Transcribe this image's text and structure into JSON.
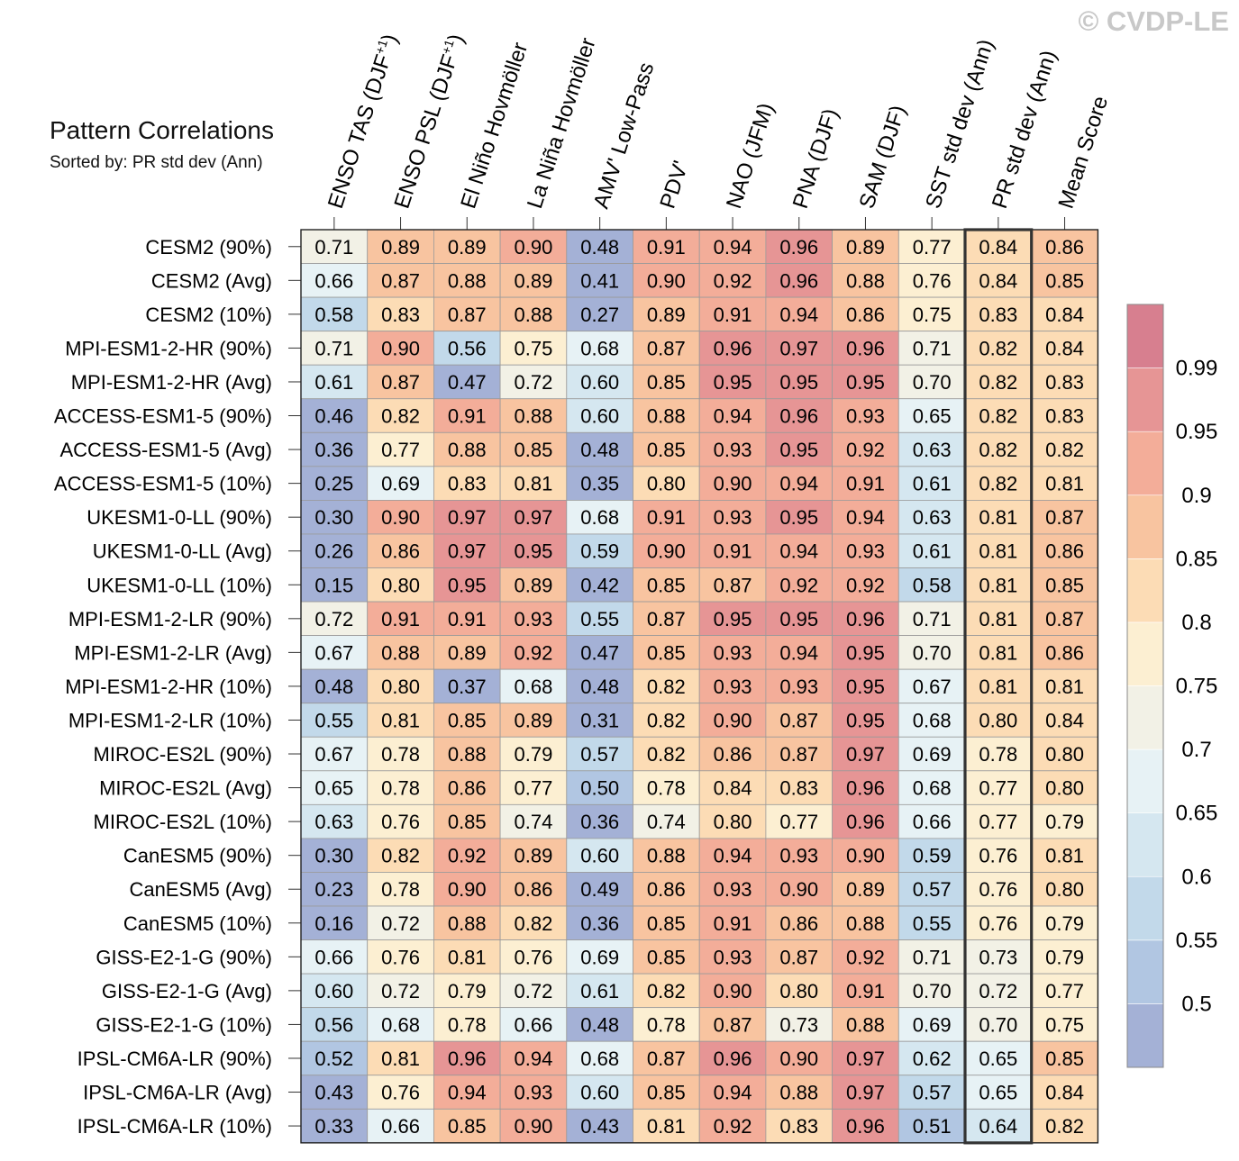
{
  "watermark": "© CVDP-LE",
  "title": "Pattern Correlations",
  "subtitle": "Sorted by: PR std dev (Ann)",
  "chart_data": {
    "type": "heatmap",
    "title": "Pattern Correlations",
    "subtitle": "Sorted by: PR std dev (Ann)",
    "columns": [
      "ENSO TAS (DJF+1)",
      "ENSO PSL (DJF+1)",
      "El Niño Hovmöller",
      "La Niña Hovmöller",
      "AMV' Low-Pass",
      "PDV'",
      "NAO (JFM)",
      "PNA (DJF)",
      "SAM (DJF)",
      "SST std dev (Ann)",
      "PR std dev (Ann)",
      "Mean Score"
    ],
    "highlighted_column": "PR std dev (Ann)",
    "rows": [
      "CESM2 (90%)",
      "CESM2 (Avg)",
      "CESM2 (10%)",
      "MPI-ESM1-2-HR (90%)",
      "MPI-ESM1-2-HR (Avg)",
      "ACCESS-ESM1-5 (90%)",
      "ACCESS-ESM1-5 (Avg)",
      "ACCESS-ESM1-5 (10%)",
      "UKESM1-0-LL (90%)",
      "UKESM1-0-LL (Avg)",
      "UKESM1-0-LL (10%)",
      "MPI-ESM1-2-LR (90%)",
      "MPI-ESM1-2-LR (Avg)",
      "MPI-ESM1-2-HR (10%)",
      "MPI-ESM1-2-LR (10%)",
      "MIROC-ES2L (90%)",
      "MIROC-ES2L (Avg)",
      "MIROC-ES2L (10%)",
      "CanESM5 (90%)",
      "CanESM5 (Avg)",
      "CanESM5 (10%)",
      "GISS-E2-1-G (90%)",
      "GISS-E2-1-G (Avg)",
      "GISS-E2-1-G (10%)",
      "IPSL-CM6A-LR (90%)",
      "IPSL-CM6A-LR (Avg)",
      "IPSL-CM6A-LR (10%)"
    ],
    "values": [
      [
        0.71,
        0.89,
        0.89,
        0.9,
        0.48,
        0.91,
        0.94,
        0.96,
        0.89,
        0.77,
        0.84,
        0.86
      ],
      [
        0.66,
        0.87,
        0.88,
        0.89,
        0.41,
        0.9,
        0.92,
        0.96,
        0.88,
        0.76,
        0.84,
        0.85
      ],
      [
        0.58,
        0.83,
        0.87,
        0.88,
        0.27,
        0.89,
        0.91,
        0.94,
        0.86,
        0.75,
        0.83,
        0.84
      ],
      [
        0.71,
        0.9,
        0.56,
        0.75,
        0.68,
        0.87,
        0.96,
        0.97,
        0.96,
        0.71,
        0.82,
        0.84
      ],
      [
        0.61,
        0.87,
        0.47,
        0.72,
        0.6,
        0.85,
        0.95,
        0.95,
        0.95,
        0.7,
        0.82,
        0.83
      ],
      [
        0.46,
        0.82,
        0.91,
        0.88,
        0.6,
        0.88,
        0.94,
        0.96,
        0.93,
        0.65,
        0.82,
        0.83
      ],
      [
        0.36,
        0.77,
        0.88,
        0.85,
        0.48,
        0.85,
        0.93,
        0.95,
        0.92,
        0.63,
        0.82,
        0.82
      ],
      [
        0.25,
        0.69,
        0.83,
        0.81,
        0.35,
        0.8,
        0.9,
        0.94,
        0.91,
        0.61,
        0.82,
        0.81
      ],
      [
        0.3,
        0.9,
        0.97,
        0.97,
        0.68,
        0.91,
        0.93,
        0.95,
        0.94,
        0.63,
        0.81,
        0.87
      ],
      [
        0.26,
        0.86,
        0.97,
        0.95,
        0.59,
        0.9,
        0.91,
        0.94,
        0.93,
        0.61,
        0.81,
        0.86
      ],
      [
        0.15,
        0.8,
        0.95,
        0.89,
        0.42,
        0.85,
        0.87,
        0.92,
        0.92,
        0.58,
        0.81,
        0.85
      ],
      [
        0.72,
        0.91,
        0.91,
        0.93,
        0.55,
        0.87,
        0.95,
        0.95,
        0.96,
        0.71,
        0.81,
        0.87
      ],
      [
        0.67,
        0.88,
        0.89,
        0.92,
        0.47,
        0.85,
        0.93,
        0.94,
        0.95,
        0.7,
        0.81,
        0.86
      ],
      [
        0.48,
        0.8,
        0.37,
        0.68,
        0.48,
        0.82,
        0.93,
        0.93,
        0.95,
        0.67,
        0.81,
        0.81
      ],
      [
        0.55,
        0.81,
        0.85,
        0.89,
        0.31,
        0.82,
        0.9,
        0.87,
        0.95,
        0.68,
        0.8,
        0.84
      ],
      [
        0.67,
        0.78,
        0.88,
        0.79,
        0.57,
        0.82,
        0.86,
        0.87,
        0.97,
        0.69,
        0.78,
        0.8
      ],
      [
        0.65,
        0.78,
        0.86,
        0.77,
        0.5,
        0.78,
        0.84,
        0.83,
        0.96,
        0.68,
        0.77,
        0.8
      ],
      [
        0.63,
        0.76,
        0.85,
        0.74,
        0.36,
        0.74,
        0.8,
        0.77,
        0.96,
        0.66,
        0.77,
        0.79
      ],
      [
        0.3,
        0.82,
        0.92,
        0.89,
        0.6,
        0.88,
        0.94,
        0.93,
        0.9,
        0.59,
        0.76,
        0.81
      ],
      [
        0.23,
        0.78,
        0.9,
        0.86,
        0.49,
        0.86,
        0.93,
        0.9,
        0.89,
        0.57,
        0.76,
        0.8
      ],
      [
        0.16,
        0.72,
        0.88,
        0.82,
        0.36,
        0.85,
        0.91,
        0.86,
        0.88,
        0.55,
        0.76,
        0.79
      ],
      [
        0.66,
        0.76,
        0.81,
        0.76,
        0.69,
        0.85,
        0.93,
        0.87,
        0.92,
        0.71,
        0.73,
        0.79
      ],
      [
        0.6,
        0.72,
        0.79,
        0.72,
        0.61,
        0.82,
        0.9,
        0.8,
        0.91,
        0.7,
        0.72,
        0.77
      ],
      [
        0.56,
        0.68,
        0.78,
        0.66,
        0.48,
        0.78,
        0.87,
        0.73,
        0.88,
        0.69,
        0.7,
        0.75
      ],
      [
        0.52,
        0.81,
        0.96,
        0.94,
        0.68,
        0.87,
        0.96,
        0.9,
        0.97,
        0.62,
        0.65,
        0.85
      ],
      [
        0.43,
        0.76,
        0.94,
        0.93,
        0.6,
        0.85,
        0.94,
        0.88,
        0.97,
        0.57,
        0.65,
        0.84
      ],
      [
        0.33,
        0.66,
        0.85,
        0.9,
        0.43,
        0.81,
        0.92,
        0.83,
        0.96,
        0.51,
        0.64,
        0.82
      ]
    ],
    "colorbar": {
      "levels": [
        0.5,
        0.55,
        0.6,
        0.65,
        0.7,
        0.75,
        0.8,
        0.85,
        0.9,
        0.95,
        0.99
      ],
      "tick_labels": [
        "0.5",
        "0.55",
        "0.6",
        "0.65",
        "0.7",
        "0.75",
        "0.8",
        "0.85",
        "0.9",
        "0.95",
        "0.99"
      ],
      "colors": [
        "#a4b1d6",
        "#b1c6e2",
        "#c2d9ea",
        "#d5e7f0",
        "#e7f2f5",
        "#f2f1e6",
        "#fcefd2",
        "#fcdcb5",
        "#f8c4a0",
        "#f3ad99",
        "#e69595",
        "#d77f8f"
      ]
    }
  }
}
